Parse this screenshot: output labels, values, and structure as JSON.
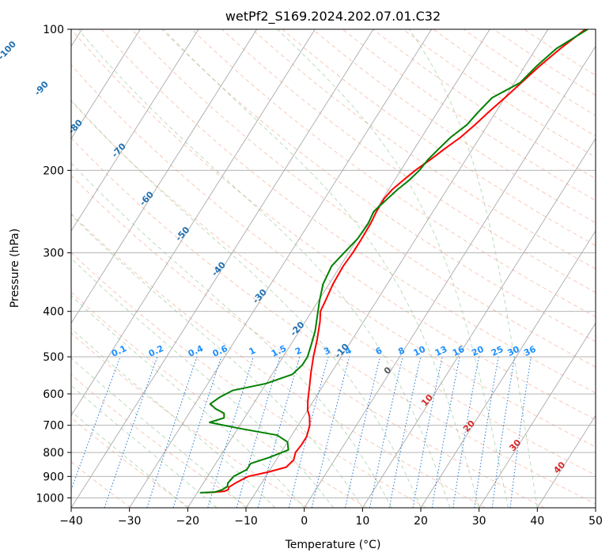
{
  "chart_data": {
    "type": "line",
    "title": "wetPf2_S169.2024.202.07.01.C32",
    "xlabel": "Temperature (°C)",
    "ylabel": "Pressure (hPa)",
    "xlim": [
      -40,
      50
    ],
    "ylim": [
      1050,
      100
    ],
    "y_scale": "log",
    "grid": true,
    "x_ticks": [
      -40,
      -30,
      -20,
      -10,
      0,
      10,
      20,
      30,
      40,
      50
    ],
    "y_ticks": [
      100,
      200,
      300,
      400,
      500,
      600,
      700,
      800,
      900,
      1000
    ],
    "mixing_ratio_labels": [
      "0.1",
      "0.2",
      "0.4",
      "0.6",
      "1",
      "1.5",
      "2",
      "3",
      "4",
      "6",
      "8",
      "10",
      "13",
      "16",
      "20",
      "25",
      "30",
      "36"
    ],
    "mixing_ratio_values": [
      0.1,
      0.2,
      0.4,
      0.6,
      1,
      1.5,
      2,
      3,
      4,
      6,
      8,
      10,
      13,
      16,
      20,
      25,
      30,
      36
    ],
    "isotherm_labels_blue": [
      "-100",
      "-90",
      "-80",
      "-70",
      "-60",
      "-50",
      "-40",
      "-30",
      "-20",
      "-10"
    ],
    "isotherm_labels_blue_pressure": [
      112,
      135,
      163,
      183,
      232,
      276,
      328,
      375,
      440,
      490
    ],
    "isotherm_labels_red": [
      "0",
      "10",
      "20",
      "30",
      "40"
    ],
    "isotherm_labels_red_pressure": [
      540,
      625,
      710,
      780,
      870
    ],
    "series": [
      {
        "color": "#ff0000",
        "p": [
          975,
          972,
          968,
          960,
          950,
          930,
          900,
          880,
          860,
          830,
          800,
          770,
          740,
          700,
          670,
          650,
          620,
          580,
          540,
          500,
          460,
          420,
          400,
          380,
          350,
          320,
          300,
          280,
          260,
          245,
          230,
          220,
          210,
          200,
          190,
          180,
          170,
          160,
          150,
          140,
          130,
          120,
          110,
          100
        ],
        "t": [
          -18.5,
          -17,
          -15.5,
          -15,
          -15.2,
          -14.5,
          -13,
          -10,
          -7.5,
          -7,
          -7.5,
          -7.3,
          -7.3,
          -8,
          -9,
          -10,
          -11,
          -12.2,
          -13.5,
          -14.8,
          -16,
          -17.5,
          -18.5,
          -18.8,
          -19.3,
          -19.5,
          -19.3,
          -19.3,
          -19.4,
          -19.7,
          -19.8,
          -19.4,
          -18.5,
          -17.5,
          -16.1,
          -14.8,
          -13.3,
          -12.2,
          -11.2,
          -10,
          -8.8,
          -7.5,
          -5.8,
          -3.6
        ]
      },
      {
        "color": "#008000",
        "p": [
          975,
          972,
          960,
          945,
          930,
          900,
          870,
          845,
          820,
          790,
          760,
          735,
          710,
          690,
          675,
          660,
          645,
          630,
          610,
          590,
          570,
          545,
          520,
          500,
          470,
          440,
          410,
          380,
          350,
          320,
          300,
          280,
          260,
          245,
          230,
          220,
          210,
          200,
          190,
          180,
          170,
          160,
          150,
          140,
          130,
          120,
          110,
          100
        ],
        "t": [
          -19.5,
          -17,
          -16,
          -15.5,
          -15.8,
          -15.5,
          -14,
          -14,
          -11.5,
          -9,
          -10,
          -12.5,
          -20,
          -25.5,
          -23.5,
          -24,
          -26,
          -27.4,
          -26.5,
          -25,
          -20,
          -16.5,
          -15.8,
          -15.8,
          -16.5,
          -17.3,
          -18.5,
          -19.8,
          -21,
          -21.5,
          -20.8,
          -20,
          -19.8,
          -20.2,
          -19.2,
          -18.5,
          -17.5,
          -16.8,
          -16.5,
          -15.8,
          -15,
          -13.6,
          -13,
          -12.2,
          -9,
          -8,
          -6.5,
          -3.2
        ]
      }
    ]
  }
}
